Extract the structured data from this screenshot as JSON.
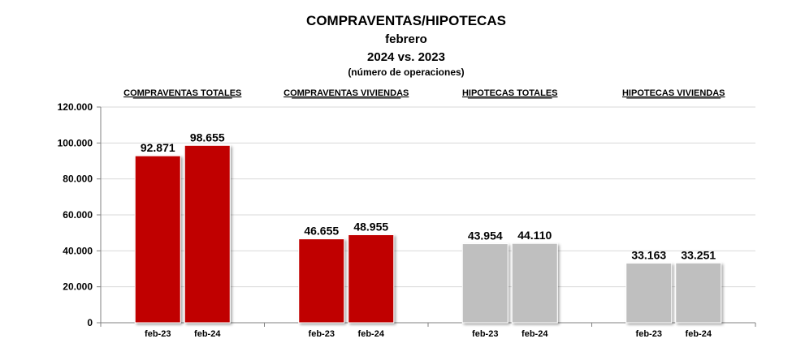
{
  "titles": {
    "line1": "COMPRAVENTAS/HIPOTECAS",
    "line2": "febrero",
    "line3": "2024 vs. 2023",
    "line4": "(número de operaciones)"
  },
  "chart_data": {
    "type": "bar",
    "ylim": [
      0,
      120000
    ],
    "yticks": [
      0,
      20000,
      40000,
      60000,
      80000,
      100000,
      120000
    ],
    "ytick_labels": [
      "0",
      "20.000",
      "40.000",
      "60.000",
      "80.000",
      "100.000",
      "120.000"
    ],
    "grid": true,
    "groups": [
      {
        "name": "COMPRAVENTAS TOTALES",
        "color": "#c00000",
        "bars": [
          {
            "category": "feb-23",
            "value": 92871,
            "label": "92.871"
          },
          {
            "category": "feb-24",
            "value": 98655,
            "label": "98.655"
          }
        ]
      },
      {
        "name": "COMPRAVENTAS VIVIENDAS",
        "color": "#c00000",
        "bars": [
          {
            "category": "feb-23",
            "value": 46655,
            "label": "46.655"
          },
          {
            "category": "feb-24",
            "value": 48955,
            "label": "48.955"
          }
        ]
      },
      {
        "name": "HIPOTECAS TOTALES",
        "color": "#bfbfbf",
        "bars": [
          {
            "category": "feb-23",
            "value": 43954,
            "label": "43.954"
          },
          {
            "category": "feb-24",
            "value": 44110,
            "label": "44.110"
          }
        ]
      },
      {
        "name": "HIPOTECAS VIVIENDAS",
        "color": "#bfbfbf",
        "bars": [
          {
            "category": "feb-23",
            "value": 33163,
            "label": "33.163"
          },
          {
            "category": "feb-24",
            "value": 33251,
            "label": "33.251"
          }
        ]
      }
    ]
  }
}
